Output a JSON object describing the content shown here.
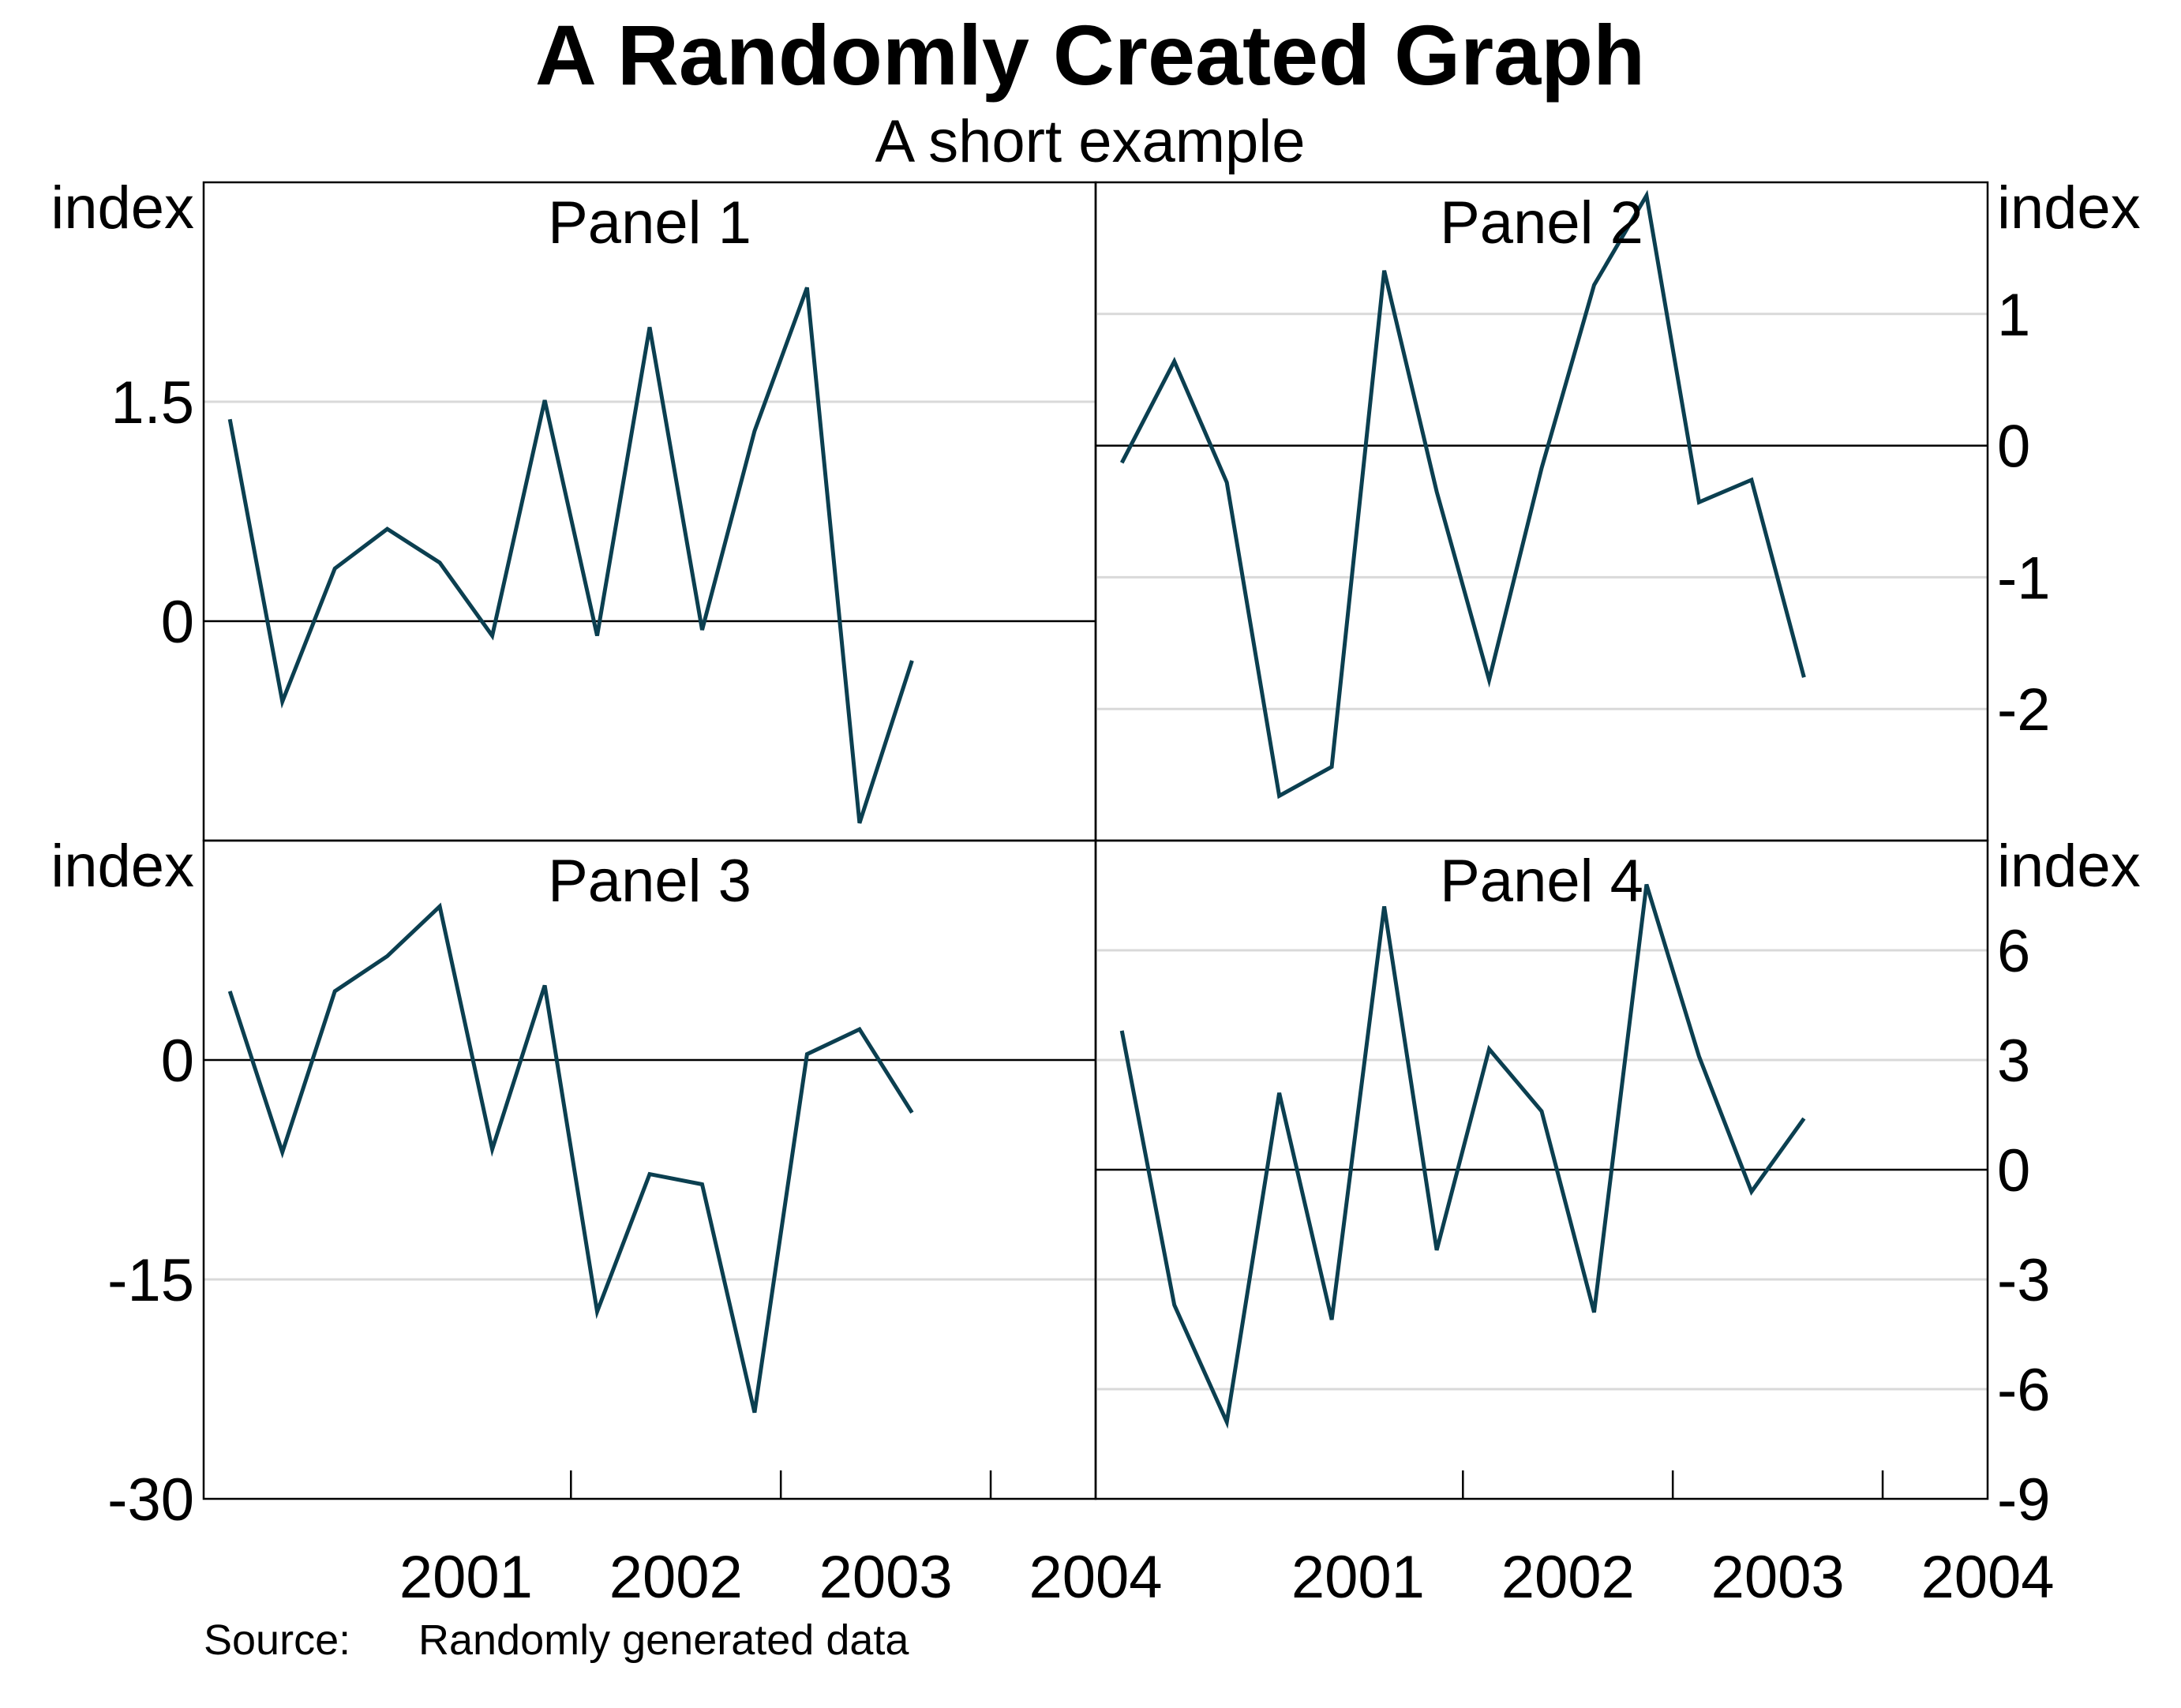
{
  "title": "A Randomly Created Graph",
  "subtitle": "A short example",
  "source_label": "Source:",
  "source_text": "Randomly generated data",
  "line_color": "#0b3f50",
  "chart_data": [
    {
      "type": "line",
      "title": "Panel 1",
      "ylabel": "index",
      "axis_side": "left",
      "ylim": [
        -1.5,
        3.0
      ],
      "yticks": [
        0,
        1.5
      ],
      "xticklabels": [
        "2001",
        "2002",
        "2003",
        "2004"
      ],
      "x": [
        "2000-Q2",
        "2000-Q3",
        "2000-Q4",
        "2001-Q1",
        "2001-Q2",
        "2001-Q3",
        "2001-Q4",
        "2002-Q1",
        "2002-Q2",
        "2002-Q3",
        "2002-Q4",
        "2003-Q1",
        "2003-Q2",
        "2003-Q3"
      ],
      "series": [
        {
          "values": [
            1.38,
            -0.55,
            0.36,
            0.63,
            0.4,
            -0.1,
            1.51,
            -0.1,
            2.01,
            -0.06,
            1.3,
            2.28,
            -1.38,
            -0.27
          ]
        }
      ]
    },
    {
      "type": "line",
      "title": "Panel 2",
      "ylabel": "index",
      "axis_side": "right",
      "ylim": [
        -3.0,
        2.0
      ],
      "yticks": [
        -2,
        -1,
        0,
        1
      ],
      "xticklabels": [
        "2001",
        "2002",
        "2003",
        "2004"
      ],
      "x": [
        "2000-Q2",
        "2000-Q3",
        "2000-Q4",
        "2001-Q1",
        "2001-Q2",
        "2001-Q3",
        "2001-Q4",
        "2002-Q1",
        "2002-Q2",
        "2002-Q3",
        "2002-Q4",
        "2003-Q1",
        "2003-Q2",
        "2003-Q3"
      ],
      "series": [
        {
          "values": [
            -0.13,
            0.64,
            -0.28,
            -2.66,
            -2.44,
            1.33,
            -0.35,
            -1.78,
            -0.17,
            1.22,
            1.9,
            -0.43,
            -0.26,
            -1.76
          ]
        }
      ]
    },
    {
      "type": "line",
      "title": "Panel 3",
      "ylabel": "index",
      "axis_side": "left",
      "ylim": [
        -30,
        15
      ],
      "yticks": [
        -30,
        -15,
        0
      ],
      "xticklabels": [
        "2001",
        "2002",
        "2003",
        "2004"
      ],
      "x": [
        "2000-Q2",
        "2000-Q3",
        "2000-Q4",
        "2001-Q1",
        "2001-Q2",
        "2001-Q3",
        "2001-Q4",
        "2002-Q1",
        "2002-Q2",
        "2002-Q3",
        "2002-Q4",
        "2003-Q1",
        "2003-Q2",
        "2003-Q3"
      ],
      "series": [
        {
          "values": [
            4.7,
            -6.3,
            4.7,
            7.1,
            10.5,
            -6.1,
            5.1,
            -17.2,
            -7.8,
            -8.5,
            -24.1,
            0.4,
            2.1,
            -3.6
          ]
        }
      ]
    },
    {
      "type": "line",
      "title": "Panel 4",
      "ylabel": "index",
      "axis_side": "right",
      "ylim": [
        -9,
        9
      ],
      "yticks": [
        -9,
        -6,
        -3,
        0,
        3,
        6
      ],
      "xticklabels": [
        "2001",
        "2002",
        "2003",
        "2004"
      ],
      "x": [
        "2000-Q2",
        "2000-Q3",
        "2000-Q4",
        "2001-Q1",
        "2001-Q2",
        "2001-Q3",
        "2001-Q4",
        "2002-Q1",
        "2002-Q2",
        "2002-Q3",
        "2002-Q4",
        "2003-Q1",
        "2003-Q2",
        "2003-Q3"
      ],
      "series": [
        {
          "values": [
            3.8,
            -3.7,
            -6.9,
            2.1,
            -4.1,
            7.2,
            -2.2,
            3.3,
            1.6,
            -3.9,
            7.8,
            3.1,
            -0.6,
            1.4
          ]
        }
      ]
    }
  ]
}
